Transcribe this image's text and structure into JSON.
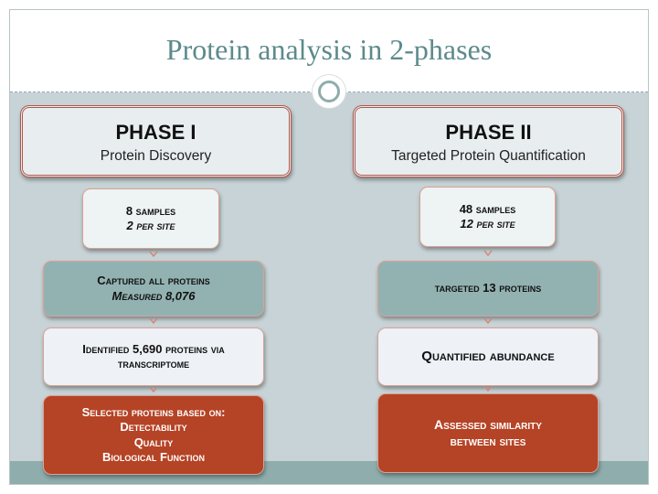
{
  "slide": {
    "title": "Protein analysis in 2-phases"
  },
  "phase1": {
    "title": "PHASE I",
    "subtitle": "Protein Discovery",
    "steps": [
      {
        "line1": "8 samples",
        "line2": "2 per site"
      },
      {
        "line1": "Captured all proteins",
        "line2": "Measured 8,076"
      },
      {
        "line1": "Identified 5,690 proteins via",
        "line2": "transcriptome"
      },
      {
        "line1": "Selected proteins based on:",
        "line2": "Detectability",
        "line3": "Quality",
        "line4": "Biological Function"
      }
    ]
  },
  "phase2": {
    "title": "PHASE II",
    "subtitle": "Targeted Protein Quantification",
    "steps": [
      {
        "line1": "48 samples",
        "line2": "12 per site"
      },
      {
        "line1": "targeted 13 proteins"
      },
      {
        "line1": "Quantified abundance"
      },
      {
        "line1": "Assessed similarity",
        "line2": "between sites"
      }
    ]
  },
  "colors": {
    "title": "#5d8a8c",
    "background": "#c7d3d6",
    "footer": "#8fadad",
    "teal_box": "#92b2b1",
    "red_box": "#b54325",
    "border": "#b0584c"
  }
}
